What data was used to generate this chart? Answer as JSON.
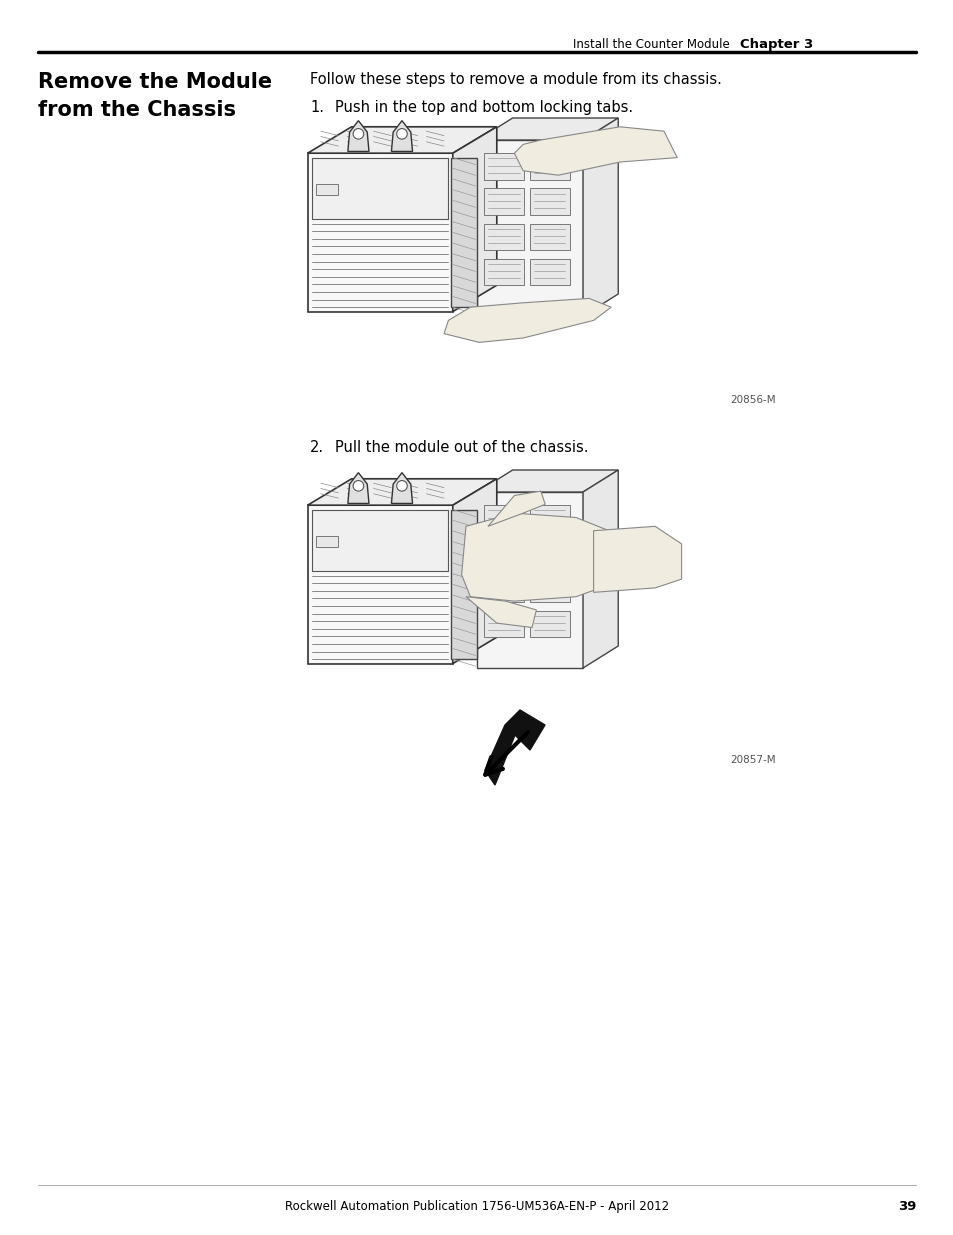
{
  "page_bg": "#ffffff",
  "header_right_text": "Install the Counter Module",
  "header_chapter": "Chapter 3",
  "section_title_line1": "Remove the Module",
  "section_title_line2": "from the Chassis",
  "intro_text": "Follow these steps to remove a module from its chassis.",
  "step1_num": "1.",
  "step1_text": "Push in the top and bottom locking tabs.",
  "step2_num": "2.",
  "step2_text": "Pull the module out of the chassis.",
  "image1_label": "20856-M",
  "image2_label": "20857-M",
  "footer_text": "Rockwell Automation Publication 1756-UM536A-EN-P - April 2012",
  "footer_page": "39",
  "text_color": "#000000",
  "line_color": "#000000",
  "draw_color": "#333333",
  "body_fontsize": 10.5,
  "footer_fontsize": 8.5,
  "header_fontsize": 8.5,
  "section_title_fontsize": 15
}
